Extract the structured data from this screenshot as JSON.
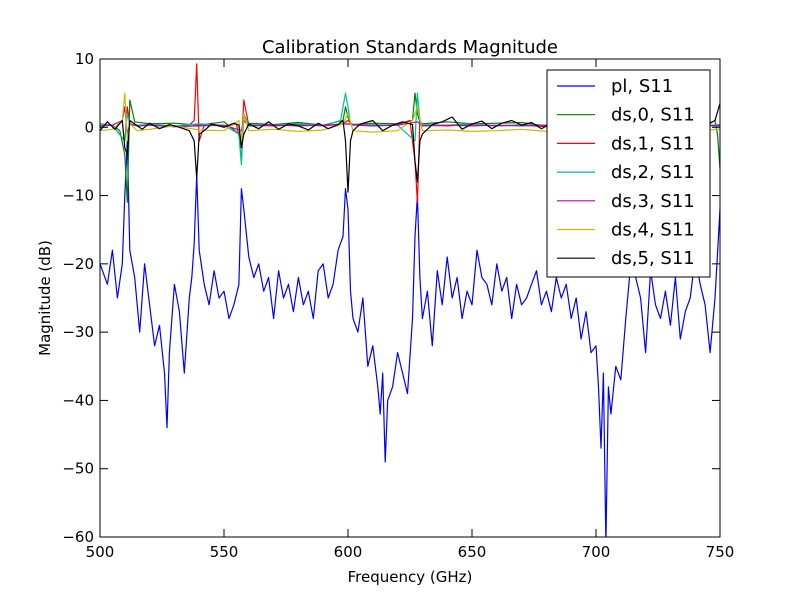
{
  "chart_data": {
    "type": "line",
    "title": "Calibration Standards Magnitude",
    "xlabel": "Frequency (GHz)",
    "ylabel": "Magnitude (dB)",
    "xlim": [
      500,
      750
    ],
    "ylim": [
      -60,
      10
    ],
    "xticks": [
      "500",
      "550",
      "600",
      "650",
      "700",
      "750"
    ],
    "yticks": [
      "10",
      "0",
      "−10",
      "−20",
      "−30",
      "−40",
      "−50",
      "−60"
    ],
    "grid": false,
    "legend_position": "upper-right",
    "series": [
      {
        "name": "pl, S11",
        "color": "#0000ff",
        "x": [
          500,
          503,
          505,
          507,
          509,
          510,
          511,
          512,
          514,
          516,
          518,
          520,
          522,
          524,
          526,
          527,
          528,
          530,
          532,
          534,
          536,
          537,
          538,
          539,
          540,
          542,
          544,
          546,
          548,
          550,
          552,
          554,
          556,
          557,
          558,
          560,
          562,
          564,
          566,
          568,
          570,
          572,
          574,
          576,
          578,
          580,
          582,
          584,
          586,
          588,
          590,
          592,
          594,
          596,
          598,
          599,
          600,
          601,
          602,
          604,
          606,
          608,
          610,
          612,
          613,
          614,
          615,
          616,
          618,
          620,
          622,
          624,
          626,
          627,
          628,
          629,
          630,
          632,
          634,
          636,
          638,
          640,
          642,
          644,
          646,
          648,
          650,
          652,
          654,
          656,
          658,
          660,
          662,
          664,
          666,
          668,
          670,
          672,
          674,
          676,
          678,
          680,
          682,
          684,
          686,
          688,
          690,
          692,
          694,
          696,
          698,
          700,
          701,
          702,
          703,
          704,
          705,
          706,
          708,
          710,
          712,
          714,
          716,
          718,
          720,
          722,
          724,
          726,
          728,
          730,
          732,
          734,
          736,
          738,
          740,
          742,
          744,
          746,
          748,
          750
        ],
        "y": [
          -20,
          -23,
          -18,
          -25,
          -20,
          -10,
          -2,
          -18,
          -22,
          -30,
          -20,
          -26,
          -32,
          -29,
          -36,
          -44,
          -33,
          -23,
          -27,
          -36,
          -25,
          -22,
          -17,
          -7,
          -18,
          -23,
          -26,
          -21,
          -25,
          -24,
          -28,
          -26,
          -23,
          -9,
          -12,
          -19,
          -22,
          -20,
          -24,
          -22,
          -28,
          -21,
          -25,
          -23,
          -27,
          -22,
          -26,
          -24,
          -28,
          -21,
          -20,
          -25,
          -23,
          -18,
          -16,
          -9,
          -12,
          -24,
          -28,
          -30,
          -25,
          -35,
          -32,
          -38,
          -42,
          -36,
          -49,
          -40,
          -38,
          -33,
          -36,
          -39,
          -28,
          -16,
          -10,
          -22,
          -28,
          -24,
          -32,
          -21,
          -26,
          -19,
          -25,
          -22,
          -28,
          -24,
          -26,
          -18,
          -22,
          -23,
          -26,
          -20,
          -24,
          -22,
          -28,
          -23,
          -26,
          -25,
          -23,
          -21,
          -26,
          -24,
          -27,
          -22,
          -25,
          -23,
          -28,
          -25,
          -31,
          -27,
          -33,
          -32,
          -38,
          -47,
          -36,
          -61,
          -38,
          -42,
          -35,
          -37,
          -28,
          -20,
          -22,
          -25,
          -33,
          -21,
          -26,
          -28,
          -24,
          -29,
          -22,
          -31,
          -27,
          -25,
          -19,
          -23,
          -26,
          -33,
          -25,
          -12
        ]
      },
      {
        "name": "ds,0, S11",
        "color": "#008000",
        "x": [
          500,
          505,
          508,
          510,
          511,
          512,
          514,
          520,
          530,
          540,
          550,
          556,
          557,
          558,
          560,
          570,
          580,
          590,
          598,
          599,
          600,
          601,
          602,
          610,
          620,
          626,
          627,
          628,
          629,
          630,
          640,
          650,
          660,
          670,
          680,
          690,
          700,
          710,
          713,
          715,
          717,
          720,
          730,
          740,
          745,
          748,
          749,
          750
        ],
        "y": [
          0.5,
          0.3,
          -0.5,
          -4,
          -11,
          4,
          0.8,
          0.5,
          0.6,
          0.3,
          0.8,
          -1,
          -5,
          1.5,
          0.6,
          0.4,
          0.7,
          0.3,
          1,
          3,
          1.5,
          0.5,
          0.4,
          0.6,
          0.5,
          1,
          5,
          2,
          0.8,
          0.5,
          0.8,
          0.5,
          0.6,
          0.7,
          0.2,
          0.5,
          0.4,
          0.8,
          1.5,
          0.6,
          0.3,
          0.5,
          0.6,
          0.3,
          0.5,
          1,
          -1,
          -6
        ]
      },
      {
        "name": "ds,1, S11",
        "color": "#ff0000",
        "x": [
          500,
          505,
          510,
          511,
          512,
          515,
          520,
          530,
          536,
          538,
          539,
          540,
          542,
          550,
          555,
          557,
          558,
          560,
          570,
          580,
          590,
          598,
          600,
          602,
          610,
          620,
          625,
          627,
          628,
          629,
          630,
          640,
          650,
          660,
          670,
          680,
          690,
          700,
          710,
          720,
          730,
          740,
          750
        ],
        "y": [
          0.2,
          0.3,
          -2,
          3,
          0.5,
          0.2,
          0.3,
          0.1,
          0.3,
          1,
          9.3,
          -2,
          0.3,
          0.2,
          0.5,
          -3,
          4,
          0.3,
          0.2,
          0.4,
          0.2,
          0.5,
          1,
          0.3,
          0.2,
          0.4,
          1,
          -5,
          -11,
          1,
          0.3,
          0.2,
          0.4,
          0.2,
          0.3,
          0.1,
          0.4,
          0.2,
          0.3,
          0.2,
          0.4,
          0.3,
          0.2
        ]
      },
      {
        "name": "ds,2, S11",
        "color": "#00bfa0",
        "x": [
          500,
          505,
          510,
          511,
          512,
          515,
          520,
          530,
          540,
          550,
          556,
          557,
          558,
          560,
          570,
          580,
          590,
          597,
          599,
          600,
          601,
          603,
          610,
          620,
          627,
          628,
          629,
          630,
          640,
          650,
          660,
          670,
          680,
          690,
          700,
          710,
          720,
          730,
          740,
          750
        ],
        "y": [
          0.5,
          0.3,
          -2,
          2,
          0.5,
          0.3,
          0.4,
          0.2,
          0.5,
          0.3,
          -1,
          -5.5,
          2,
          0.4,
          0.3,
          0.5,
          0.2,
          1,
          5,
          3,
          0.5,
          0.3,
          0.4,
          0.3,
          -2,
          5,
          1,
          0.4,
          0.3,
          0.5,
          0.2,
          0.4,
          0.3,
          0.5,
          0.2,
          0.4,
          0.3,
          0.5,
          0.2,
          0.4
        ]
      },
      {
        "name": "ds,3, S11",
        "color": "#bf00bf",
        "x": [
          500,
          505,
          509,
          510,
          511,
          512,
          515,
          520,
          530,
          540,
          550,
          557,
          558,
          560,
          570,
          580,
          590,
          600,
          610,
          620,
          628,
          630,
          640,
          650,
          660,
          670,
          680,
          690,
          700,
          710,
          720,
          730,
          740,
          750
        ],
        "y": [
          0.2,
          0.3,
          1,
          3,
          -1,
          0.5,
          0.2,
          0.3,
          0.1,
          0.2,
          0.3,
          -0.5,
          1,
          0.2,
          0.3,
          0.2,
          0.3,
          0.5,
          0.2,
          0.3,
          0.8,
          0.2,
          0.3,
          0.2,
          0.3,
          0.2,
          0.3,
          0.2,
          0.3,
          0.2,
          0.3,
          0.2,
          0.3,
          0.2
        ]
      },
      {
        "name": "ds,4, S11",
        "color": "#bfbf00",
        "x": [
          500,
          505,
          509,
          510,
          511,
          512,
          515,
          520,
          530,
          540,
          550,
          556,
          557,
          558,
          560,
          570,
          580,
          590,
          598,
          600,
          602,
          610,
          620,
          626,
          628,
          630,
          640,
          650,
          660,
          670,
          680,
          690,
          700,
          710,
          720,
          730,
          740,
          750
        ],
        "y": [
          -0.5,
          -0.3,
          1,
          5,
          -2,
          0.5,
          -0.5,
          -0.3,
          0.2,
          -0.4,
          -0.5,
          1,
          -3,
          2,
          -0.5,
          -0.3,
          -0.6,
          -0.4,
          0.5,
          2,
          -0.5,
          -0.7,
          -0.5,
          1,
          3,
          -0.5,
          -0.4,
          -0.6,
          -0.5,
          -0.3,
          -0.6,
          -0.4,
          -0.5,
          -0.3,
          -0.6,
          -0.4,
          -0.5,
          -0.3
        ]
      },
      {
        "name": "ds,5, S11",
        "color": "#000000",
        "x": [
          500,
          503,
          506,
          509,
          510,
          511,
          512,
          514,
          517,
          520,
          524,
          528,
          532,
          536,
          538,
          539,
          540,
          542,
          545,
          550,
          554,
          556,
          557,
          558,
          560,
          564,
          568,
          572,
          576,
          580,
          584,
          588,
          592,
          596,
          598,
          599,
          600,
          601,
          602,
          605,
          610,
          614,
          618,
          622,
          626,
          627,
          628,
          629,
          630,
          634,
          638,
          642,
          646,
          650,
          654,
          658,
          662,
          666,
          670,
          674,
          678,
          680,
          684,
          688,
          692,
          696,
          700,
          704,
          708,
          712,
          715,
          718,
          720,
          725,
          730,
          735,
          740,
          745,
          748,
          750
        ],
        "y": [
          -0.5,
          0.8,
          -0.3,
          1,
          -3,
          -4,
          1,
          0.5,
          -0.3,
          0.6,
          -0.2,
          0.4,
          0,
          -0.5,
          -2,
          -7.5,
          -1,
          -0.5,
          0.5,
          0,
          0.6,
          0.3,
          -3,
          -1,
          0.5,
          -0.2,
          0.8,
          -0.3,
          0.5,
          0.2,
          -0.4,
          0.6,
          -0.2,
          0.4,
          1,
          -2,
          -9.5,
          -2,
          -0.5,
          0.5,
          1,
          -0.5,
          0.3,
          0.8,
          0.4,
          -5,
          -8,
          -2,
          -1,
          0.4,
          0.8,
          1.5,
          -0.3,
          0.5,
          0.9,
          -0.2,
          0.6,
          1,
          0.3,
          0.7,
          -0.2,
          0.2,
          -0.3,
          0.5,
          -0.2,
          0.3,
          -0.1,
          0.4,
          -0.2,
          0.5,
          -0.3,
          0.3,
          -0.2,
          0.2,
          -0.1,
          0.3,
          -0.2,
          0.4,
          1,
          3.5
        ]
      }
    ]
  }
}
